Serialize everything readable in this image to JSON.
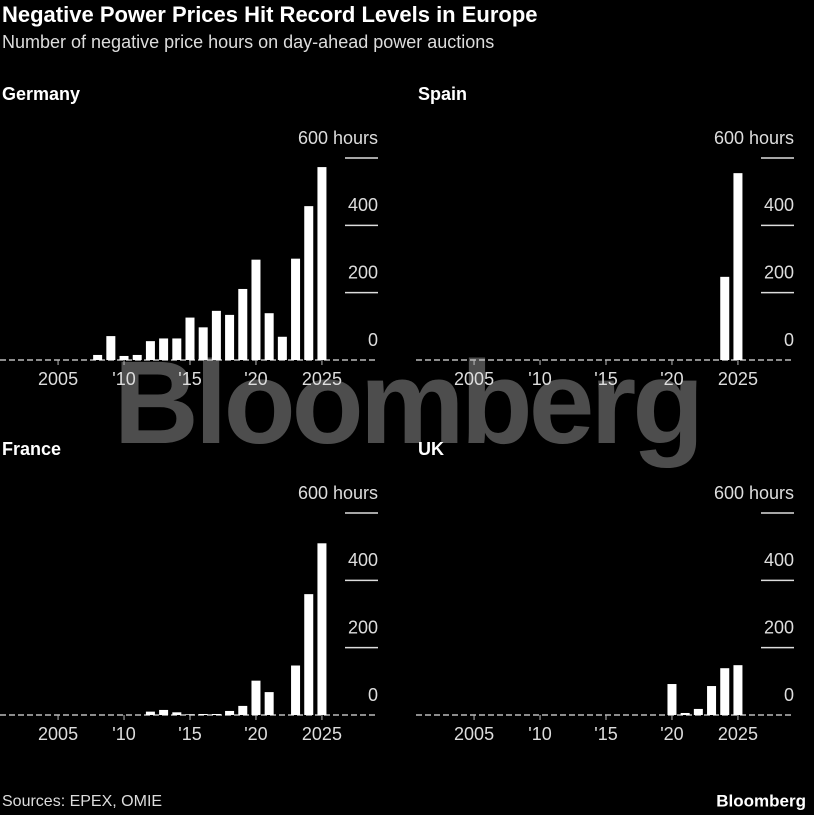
{
  "header": {
    "title": "Negative Power Prices Hit Record Levels in Europe",
    "subtitle": "Number of negative price hours on day-ahead power auctions"
  },
  "watermark": "Bloomberg",
  "footer": {
    "source": "Sources: EPEX, OMIE",
    "brand": "Bloomberg"
  },
  "chart_data": [
    {
      "type": "bar",
      "title": "Germany",
      "color": "#ffffff",
      "x": [
        2001,
        2002,
        2003,
        2004,
        2005,
        2006,
        2007,
        2008,
        2009,
        2010,
        2011,
        2012,
        2013,
        2014,
        2015,
        2016,
        2017,
        2018,
        2019,
        2020,
        2021,
        2022,
        2023,
        2024,
        2025
      ],
      "values": [
        0,
        0,
        0,
        0,
        0,
        0,
        0,
        15,
        71,
        12,
        15,
        56,
        64,
        64,
        126,
        97,
        146,
        134,
        211,
        298,
        139,
        69,
        301,
        457,
        573
      ],
      "xlim": [
        2000.6,
        2029.4
      ],
      "xticks": [
        2005,
        {
          "value": 2010,
          "label": "'10"
        },
        {
          "value": 2015,
          "label": "'15"
        },
        {
          "value": 2020,
          "label": "'20"
        },
        2025
      ],
      "ylim": [
        0,
        600
      ],
      "yticks": [
        0,
        200,
        400,
        {
          "value": 600,
          "label": "600 hours"
        }
      ]
    },
    {
      "type": "bar",
      "title": "Spain",
      "color": "#ffffff",
      "x": [
        2001,
        2002,
        2003,
        2004,
        2005,
        2006,
        2007,
        2008,
        2009,
        2010,
        2011,
        2012,
        2013,
        2014,
        2015,
        2016,
        2017,
        2018,
        2019,
        2020,
        2021,
        2022,
        2023,
        2024,
        2025
      ],
      "values": [
        0,
        0,
        0,
        0,
        0,
        0,
        0,
        0,
        0,
        0,
        0,
        0,
        0,
        0,
        0,
        0,
        0,
        0,
        0,
        0,
        0,
        0,
        0,
        247,
        555
      ],
      "xlim": [
        2000.6,
        2029.4
      ],
      "xticks": [
        2005,
        {
          "value": 2010,
          "label": "'10"
        },
        {
          "value": 2015,
          "label": "'15"
        },
        {
          "value": 2020,
          "label": "'20"
        },
        2025
      ],
      "ylim": [
        0,
        600
      ],
      "yticks": [
        0,
        200,
        400,
        {
          "value": 600,
          "label": "600 hours"
        }
      ]
    },
    {
      "type": "bar",
      "title": "France",
      "color": "#ffffff",
      "x": [
        2001,
        2002,
        2003,
        2004,
        2005,
        2006,
        2007,
        2008,
        2009,
        2010,
        2011,
        2012,
        2013,
        2014,
        2015,
        2016,
        2017,
        2018,
        2019,
        2020,
        2021,
        2022,
        2023,
        2024,
        2025
      ],
      "values": [
        0,
        0,
        0,
        0,
        0,
        0,
        0,
        0,
        0,
        0,
        0,
        10,
        15,
        8,
        2,
        3,
        3,
        12,
        27,
        102,
        68,
        0,
        147,
        359,
        510
      ],
      "xlim": [
        2000.6,
        2029.4
      ],
      "xticks": [
        2005,
        {
          "value": 2010,
          "label": "'10"
        },
        {
          "value": 2015,
          "label": "'15"
        },
        {
          "value": 2020,
          "label": "'20"
        },
        2025
      ],
      "ylim": [
        0,
        600
      ],
      "yticks": [
        0,
        200,
        400,
        {
          "value": 600,
          "label": "600 hours"
        }
      ]
    },
    {
      "type": "bar",
      "title": "UK",
      "color": "#ffffff",
      "x": [
        2001,
        2002,
        2003,
        2004,
        2005,
        2006,
        2007,
        2008,
        2009,
        2010,
        2011,
        2012,
        2013,
        2014,
        2015,
        2016,
        2017,
        2018,
        2019,
        2020,
        2021,
        2022,
        2023,
        2024,
        2025
      ],
      "values": [
        0,
        0,
        0,
        0,
        0,
        0,
        0,
        0,
        0,
        0,
        0,
        0,
        0,
        0,
        0,
        0,
        0,
        0,
        0,
        92,
        6,
        18,
        86,
        139,
        148
      ],
      "xlim": [
        2000.6,
        2029.4
      ],
      "xticks": [
        2005,
        {
          "value": 2010,
          "label": "'10"
        },
        {
          "value": 2015,
          "label": "'15"
        },
        {
          "value": 2020,
          "label": "'20"
        },
        2025
      ],
      "ylim": [
        0,
        600
      ],
      "yticks": [
        0,
        200,
        400,
        {
          "value": 600,
          "label": "600 hours"
        }
      ]
    }
  ]
}
